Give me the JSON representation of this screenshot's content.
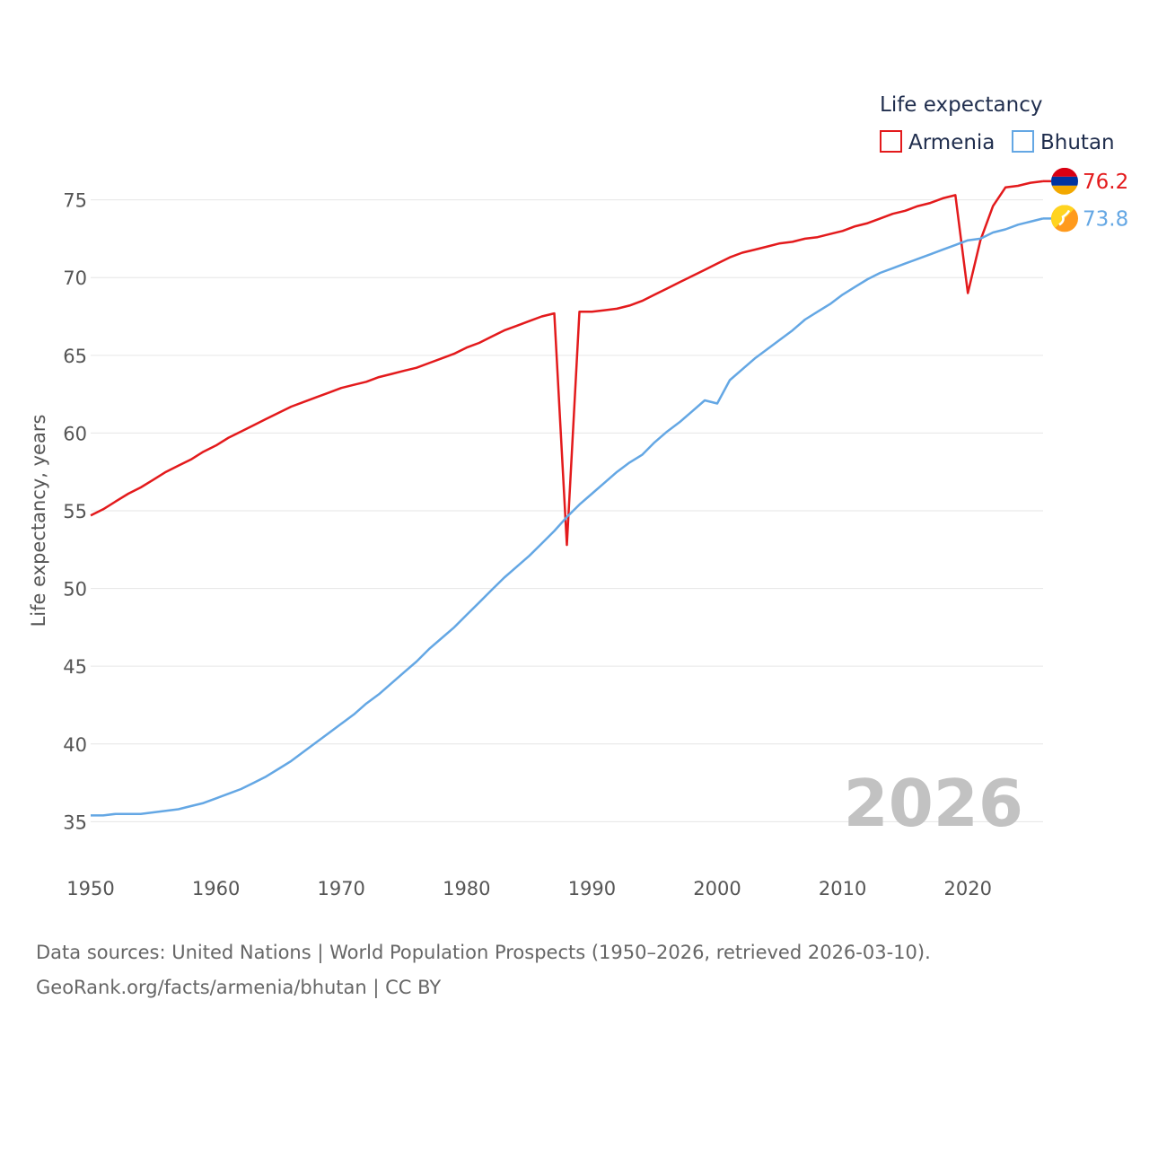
{
  "chart_data": {
    "type": "line",
    "title": "",
    "xlabel": "",
    "ylabel": "Life expectancy, years",
    "xlim": [
      1950,
      2026
    ],
    "ylim": [
      33,
      77
    ],
    "x_ticks": [
      1950,
      1960,
      1970,
      1980,
      1990,
      2000,
      2010,
      2020
    ],
    "y_ticks": [
      35,
      40,
      45,
      50,
      55,
      60,
      65,
      70,
      75
    ],
    "watermark_year": "2026",
    "legend": {
      "title": "Life expectancy",
      "position": "top-right",
      "entries": [
        "Armenia",
        "Bhutan"
      ]
    },
    "series": [
      {
        "name": "Armenia",
        "color": "#e31a1c",
        "end_label": "76.2",
        "icon": "armenia-flag-icon",
        "points": [
          [
            1950,
            54.7
          ],
          [
            1951,
            55.1
          ],
          [
            1952,
            55.6
          ],
          [
            1953,
            56.1
          ],
          [
            1954,
            56.5
          ],
          [
            1955,
            57.0
          ],
          [
            1956,
            57.5
          ],
          [
            1957,
            57.9
          ],
          [
            1958,
            58.3
          ],
          [
            1959,
            58.8
          ],
          [
            1960,
            59.2
          ],
          [
            1961,
            59.7
          ],
          [
            1962,
            60.1
          ],
          [
            1963,
            60.5
          ],
          [
            1964,
            60.9
          ],
          [
            1965,
            61.3
          ],
          [
            1966,
            61.7
          ],
          [
            1967,
            62.0
          ],
          [
            1968,
            62.3
          ],
          [
            1969,
            62.6
          ],
          [
            1970,
            62.9
          ],
          [
            1971,
            63.1
          ],
          [
            1972,
            63.3
          ],
          [
            1973,
            63.6
          ],
          [
            1974,
            63.8
          ],
          [
            1975,
            64.0
          ],
          [
            1976,
            64.2
          ],
          [
            1977,
            64.5
          ],
          [
            1978,
            64.8
          ],
          [
            1979,
            65.1
          ],
          [
            1980,
            65.5
          ],
          [
            1981,
            65.8
          ],
          [
            1982,
            66.2
          ],
          [
            1983,
            66.6
          ],
          [
            1984,
            66.9
          ],
          [
            1985,
            67.2
          ],
          [
            1986,
            67.5
          ],
          [
            1987,
            67.7
          ],
          [
            1988,
            52.8
          ],
          [
            1989,
            67.8
          ],
          [
            1990,
            67.8
          ],
          [
            1991,
            67.9
          ],
          [
            1992,
            68.0
          ],
          [
            1993,
            68.2
          ],
          [
            1994,
            68.5
          ],
          [
            1995,
            68.9
          ],
          [
            1996,
            69.3
          ],
          [
            1997,
            69.7
          ],
          [
            1998,
            70.1
          ],
          [
            1999,
            70.5
          ],
          [
            2000,
            70.9
          ],
          [
            2001,
            71.3
          ],
          [
            2002,
            71.6
          ],
          [
            2003,
            71.8
          ],
          [
            2004,
            72.0
          ],
          [
            2005,
            72.2
          ],
          [
            2006,
            72.3
          ],
          [
            2007,
            72.5
          ],
          [
            2008,
            72.6
          ],
          [
            2009,
            72.8
          ],
          [
            2010,
            73.0
          ],
          [
            2011,
            73.3
          ],
          [
            2012,
            73.5
          ],
          [
            2013,
            73.8
          ],
          [
            2014,
            74.1
          ],
          [
            2015,
            74.3
          ],
          [
            2016,
            74.6
          ],
          [
            2017,
            74.8
          ],
          [
            2018,
            75.1
          ],
          [
            2019,
            75.3
          ],
          [
            2020,
            69.0
          ],
          [
            2021,
            72.4
          ],
          [
            2022,
            74.6
          ],
          [
            2023,
            75.8
          ],
          [
            2024,
            75.9
          ],
          [
            2025,
            76.1
          ],
          [
            2026,
            76.2
          ]
        ]
      },
      {
        "name": "Bhutan",
        "color": "#64a7e4",
        "end_label": "73.8",
        "icon": "bhutan-flag-icon",
        "points": [
          [
            1950,
            35.4
          ],
          [
            1951,
            35.4
          ],
          [
            1952,
            35.5
          ],
          [
            1953,
            35.5
          ],
          [
            1954,
            35.5
          ],
          [
            1955,
            35.6
          ],
          [
            1956,
            35.7
          ],
          [
            1957,
            35.8
          ],
          [
            1958,
            36.0
          ],
          [
            1959,
            36.2
          ],
          [
            1960,
            36.5
          ],
          [
            1961,
            36.8
          ],
          [
            1962,
            37.1
          ],
          [
            1963,
            37.5
          ],
          [
            1964,
            37.9
          ],
          [
            1965,
            38.4
          ],
          [
            1966,
            38.9
          ],
          [
            1967,
            39.5
          ],
          [
            1968,
            40.1
          ],
          [
            1969,
            40.7
          ],
          [
            1970,
            41.3
          ],
          [
            1971,
            41.9
          ],
          [
            1972,
            42.6
          ],
          [
            1973,
            43.2
          ],
          [
            1974,
            43.9
          ],
          [
            1975,
            44.6
          ],
          [
            1976,
            45.3
          ],
          [
            1977,
            46.1
          ],
          [
            1978,
            46.8
          ],
          [
            1979,
            47.5
          ],
          [
            1980,
            48.3
          ],
          [
            1981,
            49.1
          ],
          [
            1982,
            49.9
          ],
          [
            1983,
            50.7
          ],
          [
            1984,
            51.4
          ],
          [
            1985,
            52.1
          ],
          [
            1986,
            52.9
          ],
          [
            1987,
            53.7
          ],
          [
            1988,
            54.6
          ],
          [
            1989,
            55.4
          ],
          [
            1990,
            56.1
          ],
          [
            1991,
            56.8
          ],
          [
            1992,
            57.5
          ],
          [
            1993,
            58.1
          ],
          [
            1994,
            58.6
          ],
          [
            1995,
            59.4
          ],
          [
            1996,
            60.1
          ],
          [
            1997,
            60.7
          ],
          [
            1998,
            61.4
          ],
          [
            1999,
            62.1
          ],
          [
            2000,
            61.9
          ],
          [
            2001,
            63.4
          ],
          [
            2002,
            64.1
          ],
          [
            2003,
            64.8
          ],
          [
            2004,
            65.4
          ],
          [
            2005,
            66.0
          ],
          [
            2006,
            66.6
          ],
          [
            2007,
            67.3
          ],
          [
            2008,
            67.8
          ],
          [
            2009,
            68.3
          ],
          [
            2010,
            68.9
          ],
          [
            2011,
            69.4
          ],
          [
            2012,
            69.9
          ],
          [
            2013,
            70.3
          ],
          [
            2014,
            70.6
          ],
          [
            2015,
            70.9
          ],
          [
            2016,
            71.2
          ],
          [
            2017,
            71.5
          ],
          [
            2018,
            71.8
          ],
          [
            2019,
            72.1
          ],
          [
            2020,
            72.4
          ],
          [
            2021,
            72.5
          ],
          [
            2022,
            72.9
          ],
          [
            2023,
            73.1
          ],
          [
            2024,
            73.4
          ],
          [
            2025,
            73.6
          ],
          [
            2026,
            73.8
          ]
        ]
      }
    ]
  },
  "footer": {
    "sources": "Data sources: United Nations | World Population Prospects (1950–2026, retrieved 2026-03-10).",
    "credit": "GeoRank.org/facts/armenia/bhutan | CC BY"
  }
}
